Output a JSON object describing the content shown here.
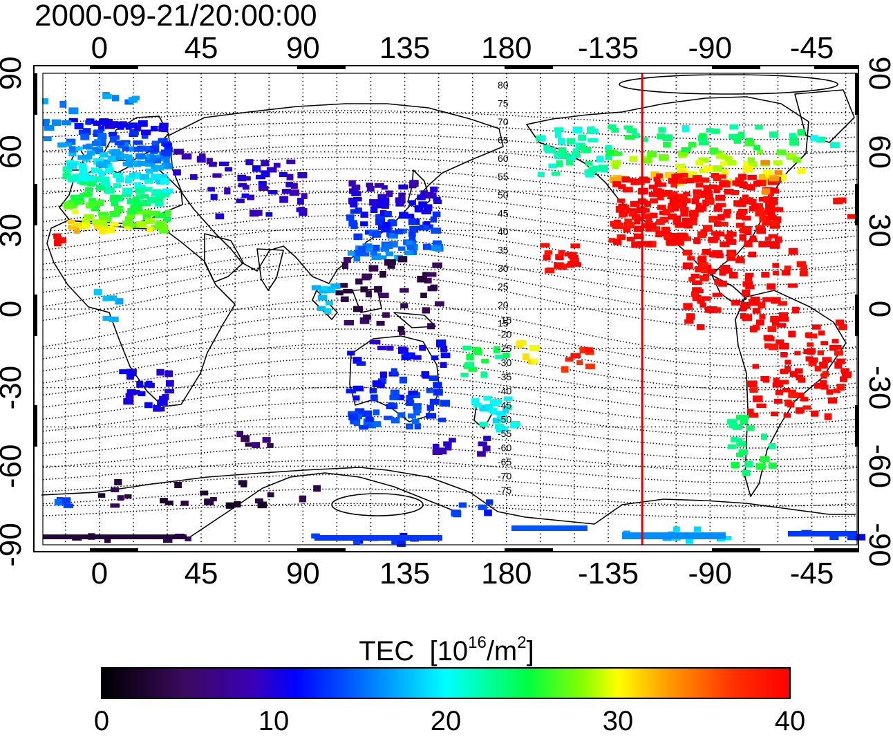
{
  "title": "2000-09-21/20:00:00",
  "longitude_ticks": [
    "0",
    "45",
    "90",
    "135",
    "180",
    "-135",
    "-90",
    "-45"
  ],
  "latitude_ticks": [
    "90",
    "60",
    "30",
    "0",
    "-30",
    "-60",
    "-90"
  ],
  "magnetic_latitude_labels": [
    "80",
    "75",
    "70",
    "65",
    "60",
    "55",
    "50",
    "45",
    "40",
    "35",
    "30",
    "25",
    "20",
    "15",
    "-15",
    "-20",
    "-25",
    "-30",
    "-35",
    "-40",
    "-45",
    "-50",
    "-55",
    "-60",
    "-65",
    "-70",
    "-75"
  ],
  "colorbar": {
    "title": "TEC",
    "unit_base": "[10",
    "unit_exp": "16",
    "unit_mid": "/m",
    "unit_exp2": "2",
    "unit_end": "]",
    "ticks": [
      "0",
      "10",
      "20",
      "30",
      "40"
    ],
    "range": [
      0,
      40
    ]
  },
  "map": {
    "lon_start": -25,
    "lon_end": 335,
    "lat_range": [
      -90,
      90
    ],
    "marker_longitude": -120,
    "marker_color": "#e00000"
  },
  "colors": {
    "tec_0": "#000000",
    "tec_10": "#0000ff",
    "tec_20": "#00ff40",
    "tec_30": "#ffff00",
    "tec_40": "#ff0000"
  }
}
